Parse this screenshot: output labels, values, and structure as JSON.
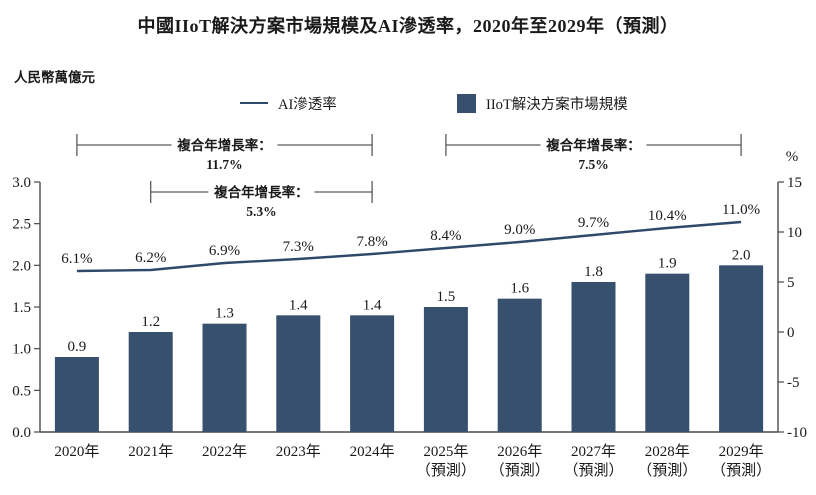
{
  "title": "中國IIoT解決方案市場規模及AI滲透率，2020年至2029年（預測）",
  "unit_label": "人民幣萬億元",
  "legend": {
    "line_label": "AI滲透率",
    "bar_label": "IIoT解決方案市場規模"
  },
  "colors": {
    "bar": "#36506e",
    "line": "#2e4a6a",
    "axis": "#4a4a4a",
    "bracket": "#5a5a5a",
    "text": "#1a1a1a"
  },
  "chart_data": {
    "type": "bar",
    "title": "中國IIoT解決方案市場規模及AI滲透率，2020年至2029年（預測）",
    "ylabel_left": "人民幣萬億元",
    "ylabel_right": "%",
    "grid": false,
    "legend_position": "top",
    "categories": [
      "2020年",
      "2021年",
      "2022年",
      "2023年",
      "2024年",
      "2025年",
      "2026年",
      "2027年",
      "2028年",
      "2029年"
    ],
    "forecast_suffix": "（預測）",
    "forecast_from_index": 5,
    "series": [
      {
        "name": "IIoT解決方案市場規模",
        "type": "bar",
        "axis": "left",
        "values": [
          0.9,
          1.2,
          1.3,
          1.4,
          1.4,
          1.5,
          1.6,
          1.8,
          1.9,
          2.0
        ],
        "labels": [
          "0.9",
          "1.2",
          "1.3",
          "1.4",
          "1.4",
          "1.5",
          "1.6",
          "1.8",
          "1.9",
          "2.0"
        ]
      },
      {
        "name": "AI滲透率",
        "type": "line",
        "axis": "right",
        "values": [
          6.1,
          6.2,
          6.9,
          7.3,
          7.8,
          8.4,
          9.0,
          9.7,
          10.4,
          11.0
        ],
        "labels": [
          "6.1%",
          "6.2%",
          "6.9%",
          "7.3%",
          "7.8%",
          "8.4%",
          "9.0%",
          "9.7%",
          "10.4%",
          "11.0%"
        ]
      }
    ],
    "left_axis": {
      "min": 0,
      "max": 3,
      "step": 0.5,
      "tick_labels": [
        "0.0",
        "0.5",
        "1.0",
        "1.5",
        "2.0",
        "2.5",
        "3.0"
      ]
    },
    "right_axis": {
      "min": -10,
      "max": 15,
      "step": 5,
      "unit": "%",
      "tick_labels": [
        "-10",
        "-5",
        "0",
        "5",
        "10",
        "15"
      ]
    },
    "annotations": [
      {
        "label": "複合年增長率：",
        "value": "11.7%",
        "from_index": 0,
        "to_index": 4,
        "row": 0
      },
      {
        "label": "複合年增長率：",
        "value": "5.3%",
        "from_index": 1,
        "to_index": 4,
        "row": 1
      },
      {
        "label": "複合年增長率：",
        "value": "7.5%",
        "from_index": 5,
        "to_index": 9,
        "row": 0
      }
    ]
  }
}
